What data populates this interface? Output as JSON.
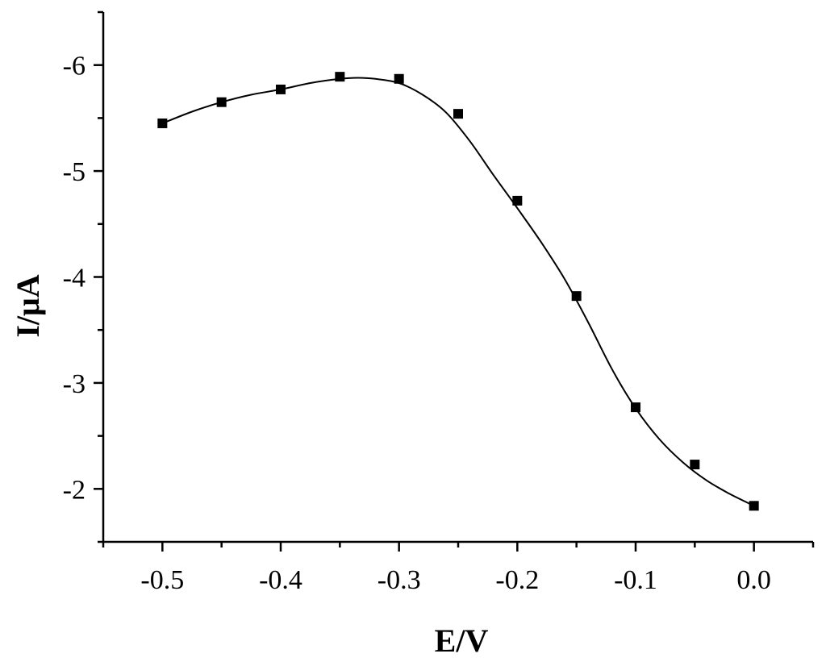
{
  "chart_data": {
    "type": "line",
    "title": "",
    "xlabel": "E/V",
    "ylabel": "I/μA",
    "xlim": [
      -0.55,
      0.05
    ],
    "ylim": [
      -1.5,
      -6.5
    ],
    "y_axis_inverted": true,
    "grid": false,
    "legend": "none",
    "x_ticks": [
      -0.5,
      -0.4,
      -0.3,
      -0.2,
      -0.1,
      0.0
    ],
    "x_tick_labels": [
      "-0.5",
      "-0.4",
      "-0.3",
      "-0.2",
      "-0.1",
      "0.0"
    ],
    "x_minor_ticks": [
      -0.55,
      -0.45,
      -0.35,
      -0.25,
      -0.15,
      -0.05,
      0.05
    ],
    "y_ticks": [
      -2,
      -3,
      -4,
      -5,
      -6
    ],
    "y_tick_labels": [
      "-2",
      "-3",
      "-4",
      "-5",
      "-6"
    ],
    "y_minor_ticks": [
      -1.5,
      -2.5,
      -3.5,
      -4.5,
      -5.5,
      -6.5
    ],
    "series": [
      {
        "marker": "square",
        "color": "#000000",
        "x": [
          -0.5,
          -0.45,
          -0.4,
          -0.35,
          -0.3,
          -0.25,
          -0.2,
          -0.15,
          -0.1,
          -0.05,
          0.0
        ],
        "y": [
          -5.45,
          -5.65,
          -5.77,
          -5.89,
          -5.87,
          -5.54,
          -4.72,
          -3.82,
          -2.77,
          -2.23,
          -1.84
        ]
      }
    ],
    "fit_curve": {
      "x": [
        -0.5,
        -0.475,
        -0.45,
        -0.425,
        -0.4,
        -0.375,
        -0.35,
        -0.335,
        -0.32,
        -0.3,
        -0.28,
        -0.26,
        -0.24,
        -0.22,
        -0.2,
        -0.18,
        -0.16,
        -0.14,
        -0.12,
        -0.1,
        -0.08,
        -0.06,
        -0.04,
        -0.02,
        0.0
      ],
      "y": [
        -5.45,
        -5.56,
        -5.65,
        -5.72,
        -5.77,
        -5.83,
        -5.87,
        -5.88,
        -5.87,
        -5.83,
        -5.72,
        -5.55,
        -5.28,
        -4.96,
        -4.65,
        -4.33,
        -3.98,
        -3.57,
        -3.13,
        -2.76,
        -2.47,
        -2.25,
        -2.08,
        -1.95,
        -1.84
      ]
    }
  }
}
